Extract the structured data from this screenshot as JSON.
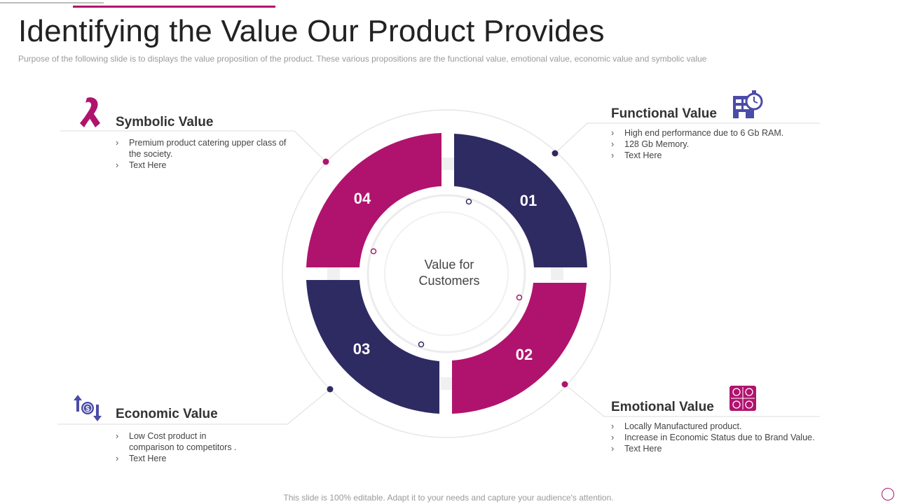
{
  "slide": {
    "title": "Identifying the Value Our Product Provides",
    "subtitle": "Purpose of the following slide is to displays the value proposition of the product. These various propositions are the functional value, emotional value, economic value and symbolic value",
    "footer": "This slide is 100% editable. Adapt it to your needs and capture your audience's attention."
  },
  "center": {
    "line1": "Value for",
    "line2": "Customers"
  },
  "colors": {
    "magenta": "#b0136e",
    "navy": "#2e2b63",
    "icon_purple": "#4b4ba8"
  },
  "quadrants": [
    {
      "number": "01",
      "color": "navy"
    },
    {
      "number": "02",
      "color": "magenta"
    },
    {
      "number": "03",
      "color": "navy"
    },
    {
      "number": "04",
      "color": "magenta"
    }
  ],
  "blocks": {
    "functional": {
      "title": "Functional Value",
      "items": [
        "High end performance  due to 6 Gb RAM.",
        "128 Gb Memory.",
        "Text Here"
      ],
      "icon": "building-clock-icon"
    },
    "emotional": {
      "title": "Emotional Value",
      "items": [
        "Locally Manufactured  product.",
        "Increase in Economic Status due to Brand Value.",
        "Text Here"
      ],
      "icon": "emotion-faces-icon"
    },
    "economic": {
      "title": "Economic Value",
      "items": [
        "Low Cost product in comparison to competitors .",
        "Text Here"
      ],
      "icon": "money-exchange-icon"
    },
    "symbolic": {
      "title": "Symbolic Value",
      "items": [
        "Premium  product catering upper class of the society.",
        "Text Here"
      ],
      "icon": "ribbon-icon"
    }
  }
}
